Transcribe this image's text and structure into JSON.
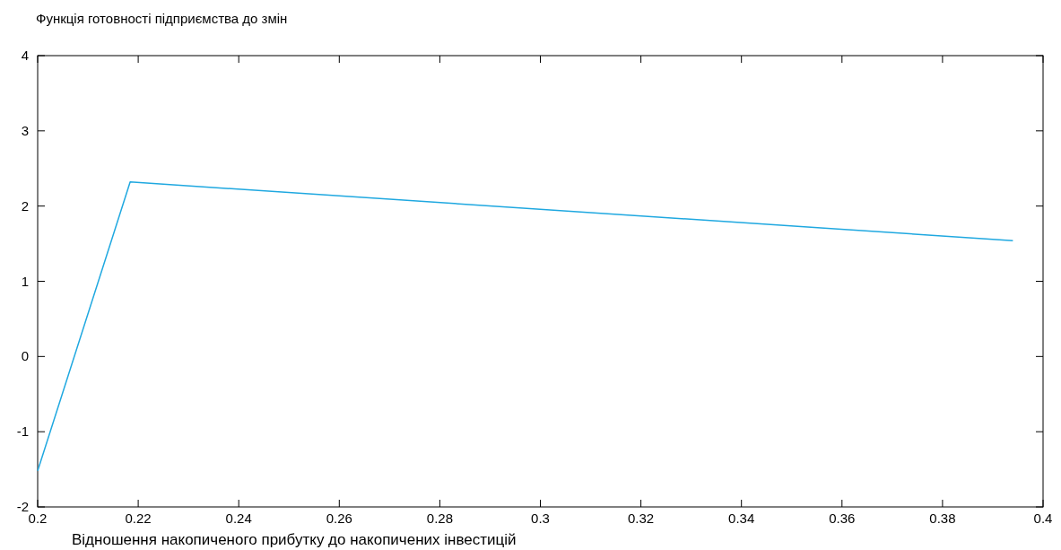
{
  "chart_data": {
    "type": "line",
    "title": "Функція готовності підприємства до змін",
    "xlabel": "Відношення накопиченого прибутку до накопичених інвестицій",
    "x": [
      0.2,
      0.2184,
      0.394
    ],
    "series": [
      {
        "color": "#1fa8e0",
        "values": [
          -1.52,
          2.32,
          1.54
        ]
      }
    ],
    "xlim": [
      0.2,
      0.4
    ],
    "xticks": [
      0.2,
      0.22,
      0.24,
      0.26,
      0.28,
      0.3,
      0.32,
      0.34,
      0.36,
      0.38,
      0.4
    ],
    "ylim": [
      -2,
      4
    ],
    "yticks": [
      -2,
      -1,
      0,
      1,
      2,
      3,
      4
    ],
    "grid": false,
    "marker": "none",
    "line_style": "solid"
  }
}
